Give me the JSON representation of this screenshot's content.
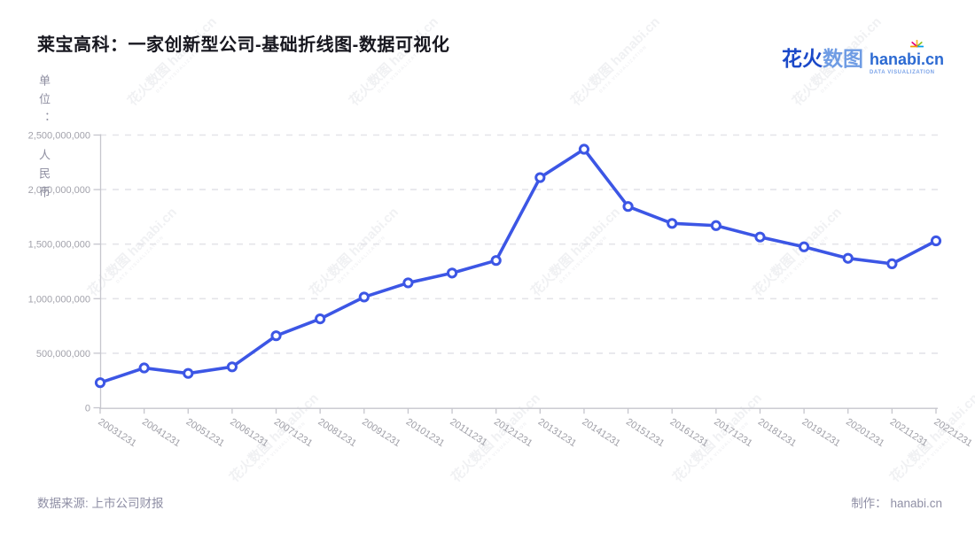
{
  "title": "莱宝高科：一家创新型公司-基础折线图-数据可视化",
  "unit": {
    "top": "单位：",
    "bottom": "人民币"
  },
  "logo": {
    "brand_cn_primary": "花火",
    "brand_cn_secondary": "数图",
    "domain": "hanabi.cn",
    "tagline": "DATA VISUALIZATION"
  },
  "footer": {
    "source": "数据来源: 上市公司财报",
    "credit": "制作： hanabi.cn"
  },
  "watermark": {
    "text": "花火数图 hanabi.cn",
    "tagline": "DATA VISUALIZATION"
  },
  "chart_data": {
    "type": "line",
    "title": "莱宝高科：一家创新型公司-基础折线图-数据可视化",
    "x": [
      "20031231",
      "20041231",
      "20051231",
      "20061231",
      "20071231",
      "20081231",
      "20091231",
      "20101231",
      "20111231",
      "20121231",
      "20131231",
      "20141231",
      "20151231",
      "20161231",
      "20171231",
      "20181231",
      "20191231",
      "20201231",
      "20211231",
      "20221231"
    ],
    "values": [
      230000000,
      365000000,
      315000000,
      375000000,
      660000000,
      815000000,
      1015000000,
      1145000000,
      1235000000,
      1350000000,
      2110000000,
      2370000000,
      1845000000,
      1690000000,
      1670000000,
      1565000000,
      1475000000,
      1370000000,
      1320000000,
      1530000000
    ],
    "ylabel": "单位：人民币",
    "xlabel": "",
    "ylim": [
      0,
      2500000000
    ],
    "y_ticks": [
      0,
      500000000,
      1000000000,
      1500000000,
      2000000000,
      2500000000
    ],
    "grid": true,
    "legend": "none",
    "line_color": "#3c56e5",
    "marker": "open-circle",
    "x_label_rotation": -33
  }
}
